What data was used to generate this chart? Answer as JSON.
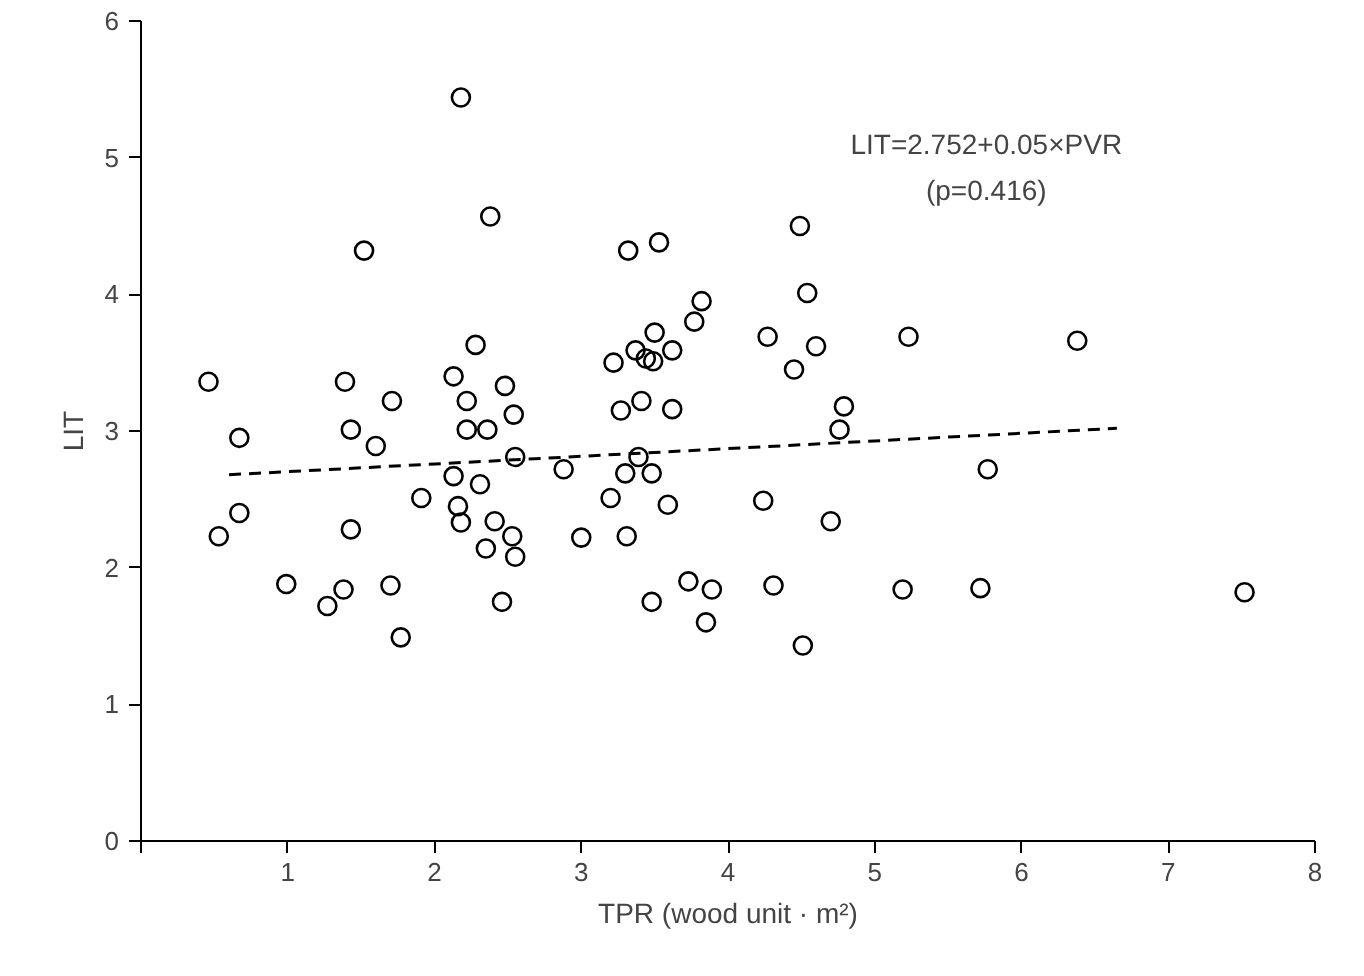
{
  "chart_data": {
    "type": "scatter",
    "xlabel": "TPR (wood unit · m²)",
    "ylabel": "LIT",
    "xlim": [
      0,
      8
    ],
    "ylim": [
      0,
      6
    ],
    "xticks": [
      {
        "value": 0,
        "label": null
      },
      1,
      2,
      3,
      4,
      5,
      6,
      7,
      8
    ],
    "yticks": [
      0,
      1,
      2,
      3,
      4,
      5,
      6
    ],
    "grid": false,
    "marker": "circle",
    "annotations": [
      "LIT=2.752+0.05×PVR",
      "(p=0.416)"
    ],
    "series": [
      {
        "color": "#000000",
        "x": [
          0.46,
          0.67,
          0.53,
          0.67,
          0.99,
          1.27,
          1.38,
          1.39,
          1.43,
          1.43,
          1.52,
          1.6,
          1.71,
          1.7,
          1.77,
          1.91,
          2.13,
          2.18,
          2.22,
          2.22,
          2.13,
          2.16,
          2.18,
          2.28,
          2.31,
          2.35,
          2.38,
          2.36,
          2.41,
          2.48,
          2.53,
          2.54,
          2.55,
          2.46,
          2.55,
          2.88,
          3.0,
          3.2,
          3.22,
          3.27,
          3.3,
          3.31,
          3.32,
          3.37,
          3.41,
          3.39,
          3.44,
          3.49,
          3.48,
          3.48,
          3.53,
          3.5,
          3.62,
          3.62,
          3.59,
          3.77,
          3.82,
          3.73,
          3.89,
          3.85,
          4.24,
          4.27,
          4.31,
          4.45,
          4.49,
          4.51,
          4.54,
          4.6,
          4.7,
          4.76,
          4.79,
          5.19,
          5.23,
          5.72,
          5.77,
          6.38,
          7.52
        ],
        "values": [
          3.36,
          2.95,
          2.23,
          2.4,
          1.88,
          1.72,
          1.84,
          3.36,
          3.01,
          2.28,
          4.32,
          2.89,
          3.22,
          1.87,
          1.49,
          2.51,
          3.4,
          5.44,
          3.22,
          3.01,
          2.67,
          2.45,
          2.33,
          3.63,
          2.61,
          2.14,
          4.57,
          3.01,
          2.34,
          3.33,
          2.23,
          3.12,
          2.08,
          1.75,
          2.81,
          2.72,
          2.22,
          2.51,
          3.5,
          3.15,
          2.69,
          2.23,
          4.32,
          3.59,
          3.22,
          2.81,
          3.53,
          3.51,
          2.69,
          1.75,
          4.38,
          3.72,
          3.59,
          3.16,
          2.46,
          3.8,
          3.95,
          1.9,
          1.84,
          1.6,
          2.49,
          3.69,
          1.87,
          3.45,
          4.5,
          1.43,
          4.01,
          3.62,
          2.34,
          3.01,
          3.18,
          1.84,
          3.69,
          1.85,
          2.72,
          3.66,
          1.82
        ]
      },
      {
        "type": "line",
        "color": "#000000",
        "line_style": "dashed",
        "marker": "none",
        "x": [
          0.6,
          6.65
        ],
        "values": [
          2.68,
          3.02
        ]
      }
    ]
  }
}
